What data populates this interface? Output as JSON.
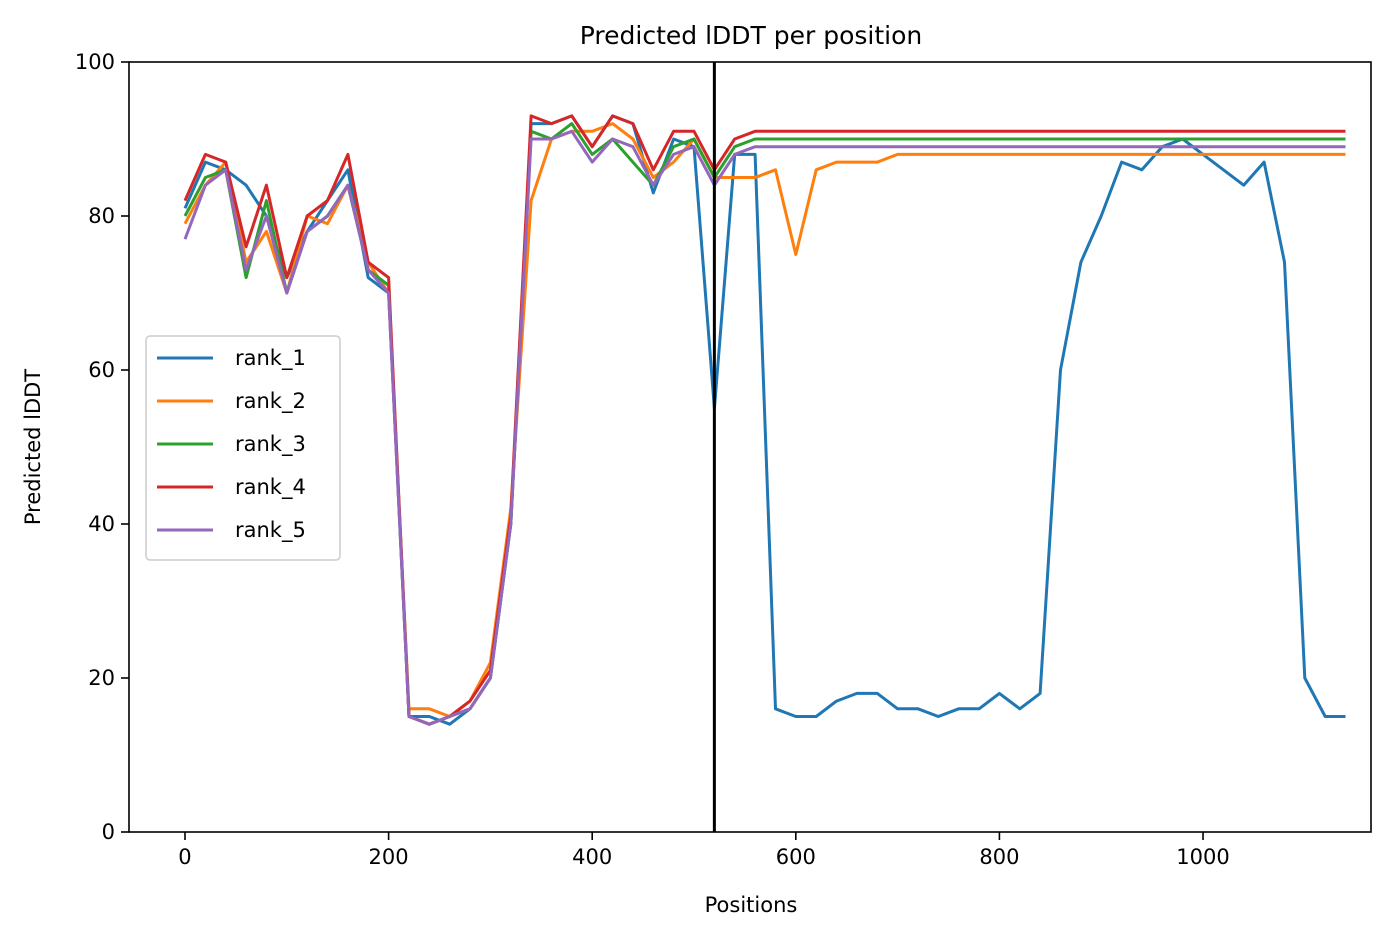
{
  "chart_data": {
    "type": "line",
    "title": "Predicted lDDT per position",
    "xlabel": "Positions",
    "ylabel": "Predicted lDDT",
    "xlim": [
      -55,
      1165
    ],
    "ylim": [
      0,
      100
    ],
    "xticks": [
      0,
      200,
      400,
      600,
      800,
      1000
    ],
    "yticks": [
      0,
      20,
      40,
      60,
      80,
      100
    ],
    "grid": false,
    "legend_position": "center-left",
    "chain_break": 520,
    "x_start": 0,
    "x_step": 20,
    "series": [
      {
        "name": "rank_1",
        "color": "#1f77b4",
        "values": [
          81,
          87,
          86,
          84,
          80,
          72,
          78,
          82,
          86,
          72,
          70,
          15,
          15,
          14,
          16,
          20,
          40,
          92,
          92,
          93,
          89,
          93,
          92,
          83,
          90,
          89,
          55,
          88,
          88,
          16,
          15,
          15,
          17,
          18,
          18,
          16,
          16,
          15,
          16,
          16,
          18,
          16,
          18,
          60,
          74,
          80,
          87,
          86,
          89,
          90,
          88,
          86,
          84,
          87,
          74,
          20,
          15,
          15
        ]
      },
      {
        "name": "rank_2",
        "color": "#ff7f0e",
        "values": [
          79,
          84,
          87,
          74,
          78,
          70,
          80,
          79,
          84,
          74,
          70,
          16,
          16,
          15,
          17,
          22,
          42,
          82,
          90,
          91,
          91,
          92,
          90,
          85,
          87,
          90,
          85,
          85,
          85,
          86,
          75,
          86,
          87,
          87,
          87,
          88,
          88,
          88,
          88,
          88,
          88,
          88,
          88,
          88,
          88,
          88,
          88,
          88,
          88,
          88,
          88,
          88,
          88,
          88,
          88,
          88,
          88,
          88
        ]
      },
      {
        "name": "rank_3",
        "color": "#2ca02c",
        "values": [
          80,
          85,
          86,
          72,
          82,
          70,
          78,
          80,
          84,
          73,
          71,
          15,
          14,
          15,
          16,
          20,
          40,
          91,
          90,
          92,
          88,
          90,
          87,
          84,
          89,
          90,
          85,
          89,
          90,
          90,
          90,
          90,
          90,
          90,
          90,
          90,
          90,
          90,
          90,
          90,
          90,
          90,
          90,
          90,
          90,
          90,
          90,
          90,
          90,
          90,
          90,
          90,
          90,
          90,
          90,
          90,
          90,
          90
        ]
      },
      {
        "name": "rank_4",
        "color": "#d62728",
        "values": [
          82,
          88,
          87,
          76,
          84,
          72,
          80,
          82,
          88,
          74,
          72,
          15,
          14,
          15,
          17,
          21,
          41,
          93,
          92,
          93,
          89,
          93,
          92,
          86,
          91,
          91,
          86,
          90,
          91,
          91,
          91,
          91,
          91,
          91,
          91,
          91,
          91,
          91,
          91,
          91,
          91,
          91,
          91,
          91,
          91,
          91,
          91,
          91,
          91,
          91,
          91,
          91,
          91,
          91,
          91,
          91,
          91,
          91
        ]
      },
      {
        "name": "rank_5",
        "color": "#9467bd",
        "values": [
          77,
          84,
          86,
          73,
          80,
          70,
          78,
          80,
          84,
          73,
          70,
          15,
          14,
          15,
          16,
          20,
          40,
          90,
          90,
          91,
          87,
          90,
          89,
          84,
          88,
          89,
          84,
          88,
          89,
          89,
          89,
          89,
          89,
          89,
          89,
          89,
          89,
          89,
          89,
          89,
          89,
          89,
          89,
          89,
          89,
          89,
          89,
          89,
          89,
          89,
          89,
          89,
          89,
          89,
          89,
          89,
          89,
          89
        ]
      }
    ]
  }
}
